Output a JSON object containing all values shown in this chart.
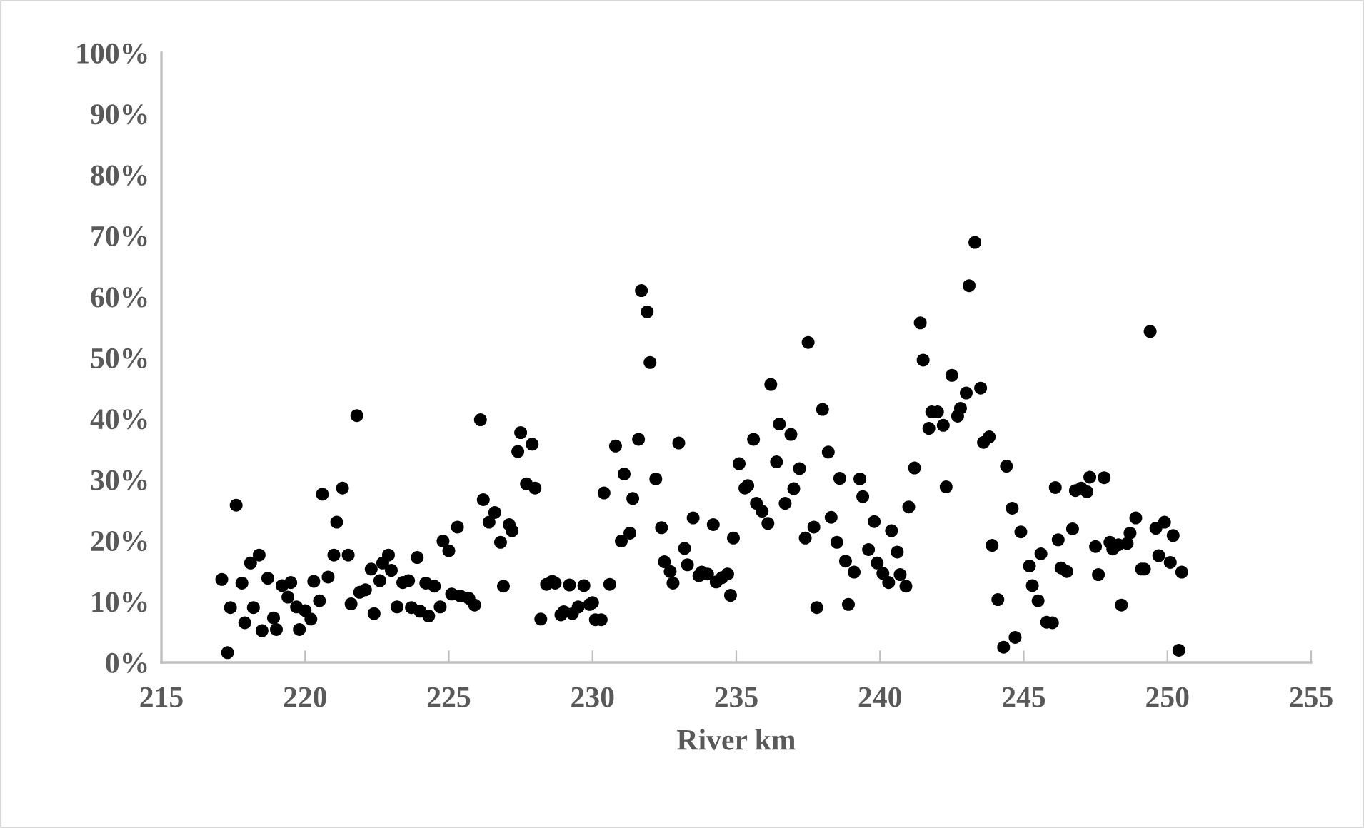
{
  "chart_data": {
    "type": "scatter",
    "xlabel": "River km",
    "marker": "circle",
    "grid": false,
    "xlim": [
      215,
      255
    ],
    "xticks": [
      215,
      220,
      225,
      230,
      235,
      240,
      245,
      250,
      255
    ],
    "ylim": [
      0,
      100
    ],
    "yticks": [
      {
        "value": 0,
        "label": "0%"
      },
      {
        "value": 10,
        "label": "10%"
      },
      {
        "value": 20,
        "label": "20%"
      },
      {
        "value": 30,
        "label": "30%"
      },
      {
        "value": 40,
        "label": "40%"
      },
      {
        "value": 50,
        "label": "50%"
      },
      {
        "value": 60,
        "label": "60%"
      },
      {
        "value": 70,
        "label": "70%"
      },
      {
        "value": 80,
        "label": "80%"
      },
      {
        "value": 90,
        "label": "90%"
      },
      {
        "value": 100,
        "label": "100%"
      }
    ],
    "series": [
      {
        "color": "#000000",
        "x": [
          217.3,
          217.1,
          217.6,
          217.8,
          217.4,
          217.9,
          218.1,
          218.4,
          218.2,
          218.5,
          218.7,
          218.9,
          219.0,
          219.2,
          219.5,
          219.4,
          219.7,
          220.0,
          220.2,
          219.8,
          220.3,
          220.5,
          220.8,
          220.6,
          221.1,
          221.3,
          221.0,
          221.5,
          221.8,
          221.6,
          222.1,
          221.9,
          222.3,
          222.4,
          222.6,
          222.7,
          222.9,
          223.0,
          223.2,
          223.4,
          223.6,
          223.9,
          223.7,
          224.0,
          224.3,
          224.2,
          224.5,
          224.7,
          224.8,
          225.0,
          225.3,
          225.1,
          225.4,
          225.7,
          225.9,
          226.1,
          226.2,
          226.6,
          226.4,
          227.1,
          227.2,
          226.8,
          226.9,
          227.5,
          227.4,
          227.9,
          227.7,
          228.0,
          228.2,
          228.4,
          228.6,
          228.7,
          228.9,
          229.0,
          229.2,
          229.3,
          229.5,
          229.7,
          229.9,
          230.0,
          230.1,
          230.3,
          230.4,
          230.6,
          230.8,
          231.0,
          231.1,
          231.3,
          231.4,
          231.6,
          231.7,
          231.9,
          232.0,
          232.2,
          232.4,
          232.5,
          232.7,
          232.8,
          233.0,
          233.2,
          233.3,
          233.5,
          233.7,
          233.8,
          234.0,
          234.2,
          234.3,
          234.5,
          234.7,
          234.8,
          234.9,
          235.1,
          235.3,
          235.4,
          235.6,
          235.7,
          235.9,
          236.1,
          236.2,
          236.4,
          236.5,
          236.7,
          236.9,
          237.0,
          237.2,
          237.4,
          237.5,
          237.7,
          237.8,
          238.0,
          238.2,
          238.3,
          238.5,
          238.6,
          238.8,
          238.9,
          239.1,
          239.3,
          239.4,
          239.6,
          239.8,
          239.9,
          240.1,
          240.3,
          240.4,
          240.6,
          240.7,
          240.9,
          241.0,
          241.2,
          241.4,
          241.5,
          241.7,
          241.8,
          242.0,
          242.2,
          242.3,
          242.5,
          242.7,
          242.8,
          243.0,
          243.1,
          243.3,
          243.5,
          243.6,
          243.8,
          243.9,
          244.1,
          244.3,
          244.4,
          244.6,
          244.7,
          244.9,
          245.2,
          245.3,
          245.5,
          245.6,
          245.8,
          246.0,
          246.1,
          246.2,
          246.3,
          246.5,
          246.7,
          246.8,
          247.0,
          247.2,
          247.3,
          247.5,
          247.6,
          247.8,
          248.0,
          248.1,
          248.3,
          248.4,
          248.6,
          248.7,
          248.9,
          249.1,
          249.2,
          249.4,
          249.6,
          249.7,
          249.9,
          250.1,
          250.2,
          250.4,
          250.5
        ],
        "values": [
          1.6,
          13.6,
          25.8,
          13.0,
          9.0,
          6.5,
          16.3,
          17.6,
          9.0,
          5.2,
          13.8,
          7.3,
          5.4,
          12.6,
          13.1,
          10.7,
          9.1,
          8.5,
          7.1,
          5.4,
          13.3,
          10.1,
          14.0,
          27.6,
          23.0,
          28.6,
          17.6,
          17.6,
          40.5,
          9.6,
          11.9,
          11.5,
          15.3,
          8.0,
          13.4,
          16.3,
          17.6,
          15.1,
          9.1,
          13.1,
          13.4,
          17.2,
          9.0,
          8.4,
          7.6,
          13.0,
          12.5,
          9.1,
          19.9,
          18.3,
          22.2,
          11.2,
          10.9,
          10.5,
          9.4,
          39.8,
          26.7,
          24.6,
          23.0,
          22.6,
          21.6,
          19.7,
          12.5,
          37.7,
          34.6,
          35.8,
          29.3,
          28.6,
          7.1,
          12.8,
          13.3,
          13.0,
          7.8,
          8.3,
          12.7,
          8.0,
          9.1,
          12.6,
          9.5,
          9.8,
          7.0,
          7.0,
          27.8,
          12.8,
          35.5,
          19.9,
          30.9,
          21.2,
          26.9,
          36.6,
          61.0,
          57.5,
          49.2,
          30.1,
          22.1,
          16.5,
          14.9,
          13.0,
          36.0,
          18.7,
          16.0,
          23.7,
          14.2,
          14.8,
          14.5,
          22.6,
          13.2,
          13.9,
          14.5,
          11.0,
          20.4,
          32.6,
          28.6,
          29.0,
          36.6,
          26.1,
          24.8,
          22.8,
          45.6,
          32.9,
          39.1,
          26.1,
          37.4,
          28.5,
          31.8,
          20.4,
          52.5,
          22.2,
          9.0,
          41.5,
          34.5,
          23.8,
          19.7,
          30.2,
          16.6,
          9.5,
          14.8,
          30.1,
          27.2,
          18.5,
          23.1,
          16.3,
          14.6,
          13.1,
          21.6,
          18.1,
          14.4,
          12.5,
          25.5,
          31.9,
          55.7,
          49.6,
          38.4,
          41.1,
          41.1,
          38.9,
          28.8,
          47.1,
          40.4,
          41.7,
          44.2,
          61.8,
          68.9,
          45.0,
          36.1,
          37.0,
          19.2,
          10.3,
          2.5,
          32.2,
          25.3,
          4.1,
          21.4,
          15.8,
          12.6,
          10.1,
          17.8,
          6.6,
          6.5,
          28.7,
          20.1,
          15.5,
          14.9,
          21.9,
          28.2,
          28.6,
          28.0,
          30.4,
          19.0,
          14.4,
          30.3,
          19.7,
          18.6,
          19.3,
          9.4,
          19.5,
          21.2,
          23.7,
          15.3,
          15.3,
          54.3,
          22.0,
          17.5,
          23.0,
          16.4,
          20.8,
          2.0,
          14.8
        ]
      }
    ]
  }
}
